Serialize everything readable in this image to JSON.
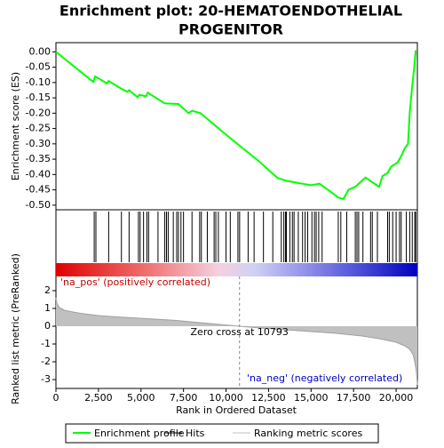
{
  "chart_data": {
    "type": "enrichment",
    "title": [
      "Enrichment plot: 20-HEMATOENDOTHELIAL",
      "PROGENITOR"
    ],
    "ylabel": "Enrichment score (ES)",
    "y2label": "Ranked list metric (PreRanked)",
    "xlabel": "Rank in Ordered Dataset",
    "pos_label": "'na_pos' (positively correlated)",
    "neg_label": "'na_neg' (negatively correlated)",
    "zero_cross_label": "Zero cross at 10793",
    "xlim": [
      0,
      21250
    ],
    "xticks": [
      0,
      {
        "value": 2500,
        "label": "2,500"
      },
      {
        "value": 5000,
        "label": "5,000"
      },
      {
        "value": 7500,
        "label": "7,500"
      },
      {
        "value": 10000,
        "label": "10,000"
      },
      {
        "value": 12500,
        "label": "12,500"
      },
      {
        "value": 15000,
        "label": "15,000"
      },
      {
        "value": 17500,
        "label": "17,500"
      },
      {
        "value": 20000,
        "label": "20,000"
      }
    ],
    "ylim": [
      -0.515,
      0.03
    ],
    "yticks": [
      {
        "value": 0,
        "label": "0.00"
      },
      {
        "value": -0.05,
        "label": "-0.05"
      },
      {
        "value": -0.1,
        "label": "-0.10"
      },
      {
        "value": -0.15,
        "label": "-0.15"
      },
      {
        "value": -0.2,
        "label": "-0.20"
      },
      {
        "value": -0.25,
        "label": "-0.25"
      },
      {
        "value": -0.3,
        "label": "-0.30"
      },
      {
        "value": -0.35,
        "label": "-0.35"
      },
      {
        "value": -0.4,
        "label": "-0.40"
      },
      {
        "value": -0.45,
        "label": "-0.45"
      },
      {
        "value": -0.5,
        "label": "-0.50"
      }
    ],
    "y2lim": [
      -3.5,
      2.8
    ],
    "y2ticks": [
      2,
      1,
      0,
      -1,
      -2,
      -3
    ],
    "enrichment": {
      "name": "Enrichment profile",
      "color": "#00ff00",
      "x": [
        0,
        2200,
        2300,
        3000,
        3100,
        3900,
        4200,
        4300,
        4800,
        4900,
        5300,
        5400,
        6400,
        7200,
        7800,
        8000,
        8500,
        10000,
        12000,
        13000,
        13500,
        14000,
        14500,
        15000,
        15500,
        16000,
        16600,
        16900,
        17200,
        17600,
        17800,
        18200,
        19000,
        19200,
        19500,
        19700,
        20100,
        20300,
        20500,
        20700,
        20800,
        20950,
        21050,
        21150
      ],
      "values": [
        0,
        -0.098,
        -0.08,
        -0.103,
        -0.095,
        -0.122,
        -0.13,
        -0.125,
        -0.148,
        -0.14,
        -0.145,
        -0.133,
        -0.168,
        -0.17,
        -0.2,
        -0.192,
        -0.2,
        -0.27,
        -0.36,
        -0.41,
        -0.42,
        -0.425,
        -0.43,
        -0.435,
        -0.43,
        -0.45,
        -0.475,
        -0.48,
        -0.45,
        -0.44,
        -0.43,
        -0.41,
        -0.44,
        -0.405,
        -0.395,
        -0.375,
        -0.36,
        -0.34,
        -0.315,
        -0.3,
        -0.2,
        -0.11,
        -0.06,
        0.005
      ]
    },
    "hits": {
      "name": "Hits",
      "color": "#000000",
      "x": [
        2250,
        2350,
        3100,
        3850,
        4300,
        4850,
        4950,
        5150,
        5350,
        5450,
        6000,
        6400,
        6500,
        6600,
        6900,
        7100,
        7200,
        7350,
        7500,
        8000,
        8450,
        8550,
        8900,
        9300,
        9400,
        9550,
        10000,
        10250,
        10700,
        10800,
        11300,
        11650,
        12200,
        12750,
        13250,
        13400,
        13500,
        13550,
        13750,
        13900,
        14000,
        14250,
        14500,
        14650,
        14800,
        15050,
        15200,
        15300,
        15450,
        15650,
        16600,
        16750,
        17100,
        17600,
        17700,
        17800,
        18050,
        18500,
        18600,
        18900,
        19500,
        19600,
        19800,
        20000,
        20200,
        20300,
        20600,
        20800,
        20950,
        21100,
        21150
      ]
    },
    "metric": {
      "name": "Ranking metric scores",
      "color": "#c0c0c0",
      "x": [
        0,
        50,
        200,
        500,
        1000,
        1500,
        2500,
        4000,
        5500,
        7000,
        8500,
        10000,
        10793,
        12000,
        13500,
        15000,
        16500,
        18000,
        19000,
        20000,
        20500,
        20800,
        21000,
        21100,
        21200,
        21250
      ],
      "values": [
        1.6,
        1.3,
        1.05,
        0.9,
        0.8,
        0.72,
        0.6,
        0.5,
        0.42,
        0.33,
        0.2,
        0.07,
        0,
        -0.1,
        -0.2,
        -0.3,
        -0.4,
        -0.55,
        -0.7,
        -0.9,
        -1.1,
        -1.3,
        -1.6,
        -2.0,
        -2.6,
        -3.3
      ]
    }
  }
}
